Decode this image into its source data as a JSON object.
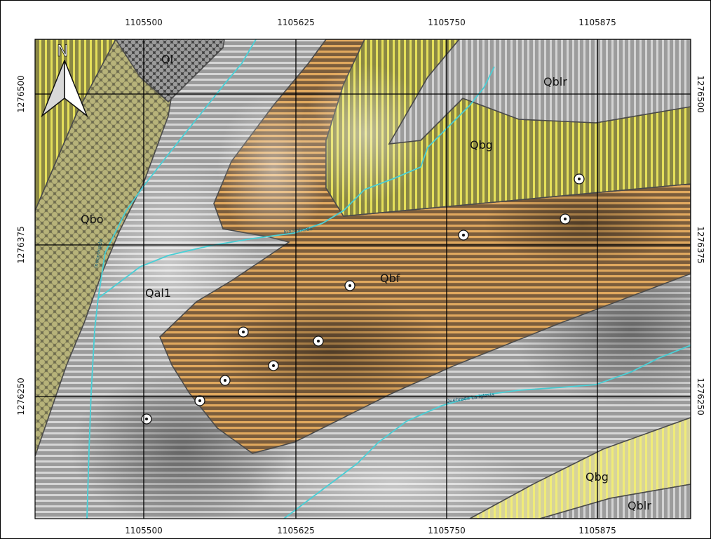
{
  "map": {
    "north_arrow": {
      "label": "N"
    },
    "grid": {
      "x_ticks": [
        "1105500",
        "1105625",
        "1105750",
        "1105875"
      ],
      "y_ticks": [
        "1276500",
        "1276375",
        "1276250"
      ]
    },
    "units": [
      {
        "code": "Ql"
      },
      {
        "code": "Qblr"
      },
      {
        "code": "Qbg"
      },
      {
        "code": "Qbo"
      },
      {
        "code": "Qal1"
      },
      {
        "code": "Qbf"
      },
      {
        "code": "Qbg"
      },
      {
        "code": "Qblr"
      }
    ],
    "streams": [
      {
        "name": "Innominada"
      },
      {
        "name": "Innominada"
      },
      {
        "name": "Quebrada La Iglesia"
      }
    ],
    "sample_points_count": 10,
    "colors": {
      "stream": "#48cfd6",
      "grid": "#000000",
      "contact": "#4a4a4a",
      "unit_orange": "#d8a66a",
      "unit_yellow": "#d8d24a",
      "unit_gray": "#9a9a9a",
      "unit_olive": "#a7a26a"
    }
  }
}
